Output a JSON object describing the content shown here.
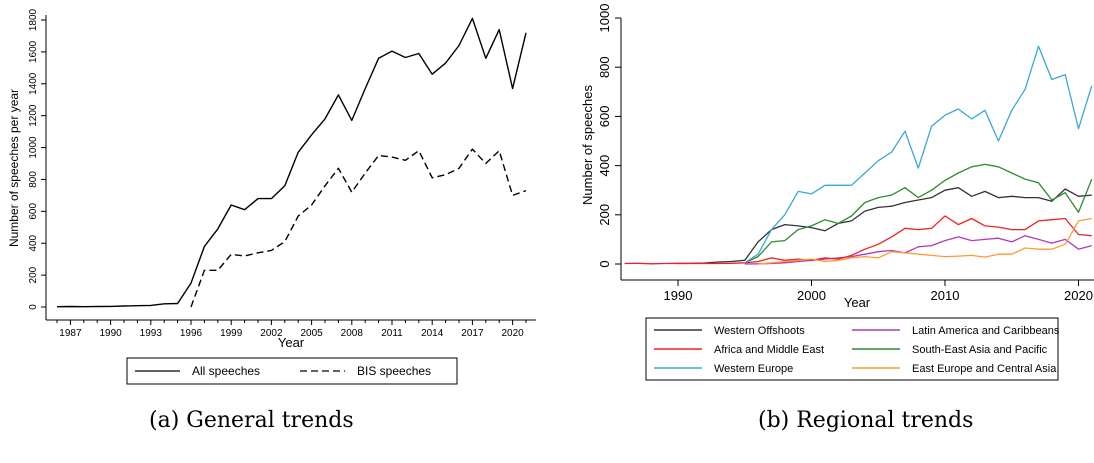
{
  "captions": [
    "(a) General trends",
    "(b) Regional trends"
  ],
  "chart_data": [
    {
      "type": "line",
      "xlabel": "Year",
      "ylabel": "Number of speeches per year",
      "xlim": [
        1986,
        2021
      ],
      "ylim": [
        0,
        1800
      ],
      "xticks": [
        1987,
        1990,
        1993,
        1996,
        1999,
        2002,
        2005,
        2008,
        2011,
        2014,
        2017,
        2020
      ],
      "yticks": [
        0,
        200,
        400,
        600,
        800,
        1000,
        1200,
        1400,
        1600,
        1800
      ],
      "legend_position": "bottom",
      "series": [
        {
          "name": "All speeches",
          "style": "solid",
          "color": "#000000",
          "x": [
            1986,
            1987,
            1988,
            1989,
            1990,
            1991,
            1992,
            1993,
            1994,
            1995,
            1996,
            1997,
            1998,
            1999,
            2000,
            2001,
            2002,
            2003,
            2004,
            2005,
            2006,
            2007,
            2008,
            2009,
            2010,
            2011,
            2012,
            2013,
            2014,
            2015,
            2016,
            2017,
            2018,
            2019,
            2020,
            2021
          ],
          "values": [
            2,
            3,
            2,
            3,
            4,
            6,
            8,
            10,
            20,
            22,
            150,
            380,
            490,
            640,
            610,
            680,
            680,
            760,
            970,
            1080,
            1180,
            1330,
            1170,
            1370,
            1560,
            1605,
            1565,
            1590,
            1460,
            1530,
            1640,
            1810,
            1560,
            1740,
            1370,
            1720
          ]
        },
        {
          "name": "BIS speeches",
          "style": "dashed",
          "color": "#000000",
          "x": [
            1996,
            1997,
            1998,
            1999,
            2000,
            2001,
            2002,
            2003,
            2004,
            2005,
            2006,
            2007,
            2008,
            2009,
            2010,
            2011,
            2012,
            2013,
            2014,
            2015,
            2016,
            2017,
            2018,
            2019,
            2020,
            2021
          ],
          "values": [
            0,
            230,
            230,
            330,
            320,
            340,
            355,
            410,
            570,
            640,
            760,
            870,
            720,
            840,
            950,
            940,
            920,
            980,
            810,
            830,
            870,
            990,
            900,
            980,
            700,
            730
          ]
        }
      ]
    },
    {
      "type": "line",
      "xlabel": "Year",
      "ylabel": "Number of speeches",
      "xlim": [
        1985,
        2021
      ],
      "ylim": [
        0,
        1000
      ],
      "xticks": [
        1990,
        2000,
        2010,
        2020
      ],
      "xtick_labels": [
        "1990",
        "2000",
        "2010",
        "2020"
      ],
      "yticks": [
        0,
        200,
        400,
        600,
        800,
        1000
      ],
      "legend_position": "bottom",
      "series": [
        {
          "name": "Western Offshoots",
          "color": "#333333",
          "x": [
            1990,
            1991,
            1992,
            1993,
            1994,
            1995,
            1996,
            1997,
            1998,
            1999,
            2000,
            2001,
            2002,
            2003,
            2004,
            2005,
            2006,
            2007,
            2008,
            2009,
            2010,
            2011,
            2012,
            2013,
            2014,
            2015,
            2016,
            2017,
            2018,
            2019,
            2020,
            2021
          ],
          "values": [
            2,
            3,
            4,
            8,
            10,
            15,
            90,
            140,
            160,
            155,
            148,
            135,
            165,
            175,
            215,
            230,
            235,
            250,
            260,
            270,
            300,
            310,
            275,
            295,
            270,
            275,
            270,
            270,
            255,
            305,
            275,
            280
          ]
        },
        {
          "name": "Latin America and Caribbeans",
          "color": "#b23ab5",
          "x": [
            1995,
            1996,
            1997,
            1998,
            1999,
            2000,
            2001,
            2002,
            2003,
            2004,
            2005,
            2006,
            2007,
            2008,
            2009,
            2010,
            2011,
            2012,
            2013,
            2014,
            2015,
            2016,
            2017,
            2018,
            2019,
            2020,
            2021
          ],
          "values": [
            0,
            1,
            2,
            5,
            10,
            15,
            20,
            25,
            30,
            40,
            50,
            55,
            45,
            70,
            75,
            95,
            110,
            95,
            100,
            105,
            90,
            115,
            100,
            85,
            100,
            60,
            75
          ]
        },
        {
          "name": "Africa and Middle East",
          "color": "#ee2222",
          "x": [
            1986,
            1987,
            1988,
            1989,
            1990,
            1991,
            1992,
            1993,
            1994,
            1995,
            1996,
            1997,
            1998,
            1999,
            2000,
            2001,
            2002,
            2003,
            2004,
            2005,
            2006,
            2007,
            2008,
            2009,
            2010,
            2011,
            2012,
            2013,
            2014,
            2015,
            2016,
            2017,
            2018,
            2019,
            2020,
            2021
          ],
          "values": [
            2,
            3,
            1,
            2,
            3,
            2,
            3,
            2,
            3,
            5,
            10,
            25,
            15,
            20,
            15,
            25,
            20,
            35,
            60,
            80,
            110,
            145,
            140,
            145,
            195,
            160,
            185,
            155,
            150,
            140,
            140,
            175,
            180,
            185,
            120,
            115
          ]
        },
        {
          "name": "South-East Asia and Pacific",
          "color": "#2f8a2f",
          "x": [
            1995,
            1996,
            1997,
            1998,
            1999,
            2000,
            2001,
            2002,
            2003,
            2004,
            2005,
            2006,
            2007,
            2008,
            2009,
            2010,
            2011,
            2012,
            2013,
            2014,
            2015,
            2016,
            2017,
            2018,
            2019,
            2020,
            2021
          ],
          "values": [
            5,
            30,
            90,
            95,
            140,
            155,
            180,
            165,
            195,
            250,
            270,
            280,
            310,
            270,
            300,
            340,
            370,
            395,
            405,
            395,
            370,
            345,
            330,
            260,
            290,
            210,
            345
          ]
        },
        {
          "name": "Western Europe",
          "color": "#3aa7d6",
          "x": [
            1995,
            1996,
            1997,
            1998,
            1999,
            2000,
            2001,
            2002,
            2003,
            2004,
            2005,
            2006,
            2007,
            2008,
            2009,
            2010,
            2011,
            2012,
            2013,
            2014,
            2015,
            2016,
            2017,
            2018,
            2019,
            2020,
            2021
          ],
          "values": [
            5,
            40,
            140,
            200,
            295,
            285,
            320,
            320,
            320,
            370,
            420,
            455,
            540,
            390,
            560,
            605,
            630,
            590,
            625,
            500,
            625,
            710,
            885,
            750,
            770,
            550,
            725
          ]
        },
        {
          "name": "East Europe and Central Asia",
          "color": "#ff9a33",
          "x": [
            1996,
            1997,
            1998,
            1999,
            2000,
            2001,
            2002,
            2003,
            2004,
            2005,
            2006,
            2007,
            2008,
            2009,
            2010,
            2011,
            2012,
            2013,
            2014,
            2015,
            2016,
            2017,
            2018,
            2019,
            2020,
            2021
          ],
          "values": [
            0,
            5,
            10,
            15,
            20,
            10,
            15,
            25,
            30,
            25,
            50,
            45,
            40,
            35,
            30,
            32,
            35,
            28,
            40,
            40,
            65,
            60,
            60,
            80,
            175,
            185
          ]
        }
      ]
    }
  ]
}
